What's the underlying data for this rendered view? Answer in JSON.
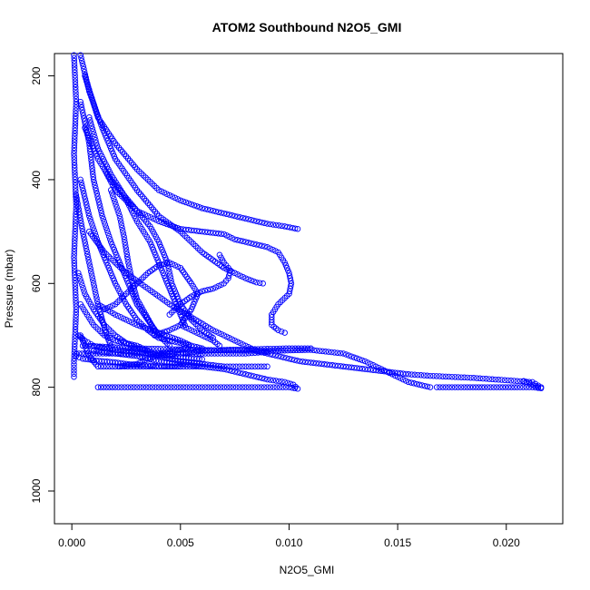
{
  "chart_data": {
    "type": "scatter",
    "title": "ATOM2 Southbound N2O5_GMI",
    "xlabel": "N2O5_GMI",
    "ylabel": "Pressure (mbar)",
    "xlim": [
      -0.0008,
      0.0226
    ],
    "ylim": [
      1063,
      157
    ],
    "y_reversed": true,
    "xticks": [
      0,
      0.005,
      0.01,
      0.015,
      0.02
    ],
    "xtick_labels": [
      "0.000",
      "0.005",
      "0.010",
      "0.015",
      "0.020"
    ],
    "yticks": [
      200,
      400,
      600,
      800,
      1000
    ],
    "ytick_labels": [
      "200",
      "400",
      "600",
      "800",
      "1000"
    ],
    "grid": false,
    "marker": "open-circle",
    "color": "#0000ff",
    "series": [
      {
        "values": [
          [
            0.0001,
            160
          ],
          [
            0.0002,
            250
          ],
          [
            0.0001,
            350
          ],
          [
            0.0002,
            450
          ],
          [
            0.0001,
            550
          ],
          [
            0.0002,
            650
          ],
          [
            0.0001,
            750
          ],
          [
            0.0001,
            780
          ]
        ]
      },
      {
        "values": [
          [
            0.0004,
            160
          ],
          [
            0.0008,
            230
          ],
          [
            0.0014,
            300
          ],
          [
            0.002,
            360
          ],
          [
            0.003,
            420
          ],
          [
            0.004,
            470
          ],
          [
            0.005,
            500
          ],
          [
            0.0055,
            520
          ],
          [
            0.006,
            540
          ],
          [
            0.0065,
            555
          ],
          [
            0.007,
            570
          ],
          [
            0.0075,
            580
          ],
          [
            0.008,
            590
          ],
          [
            0.0085,
            598
          ],
          [
            0.0088,
            600
          ]
        ]
      },
      {
        "values": [
          [
            0.0006,
            200
          ],
          [
            0.0012,
            280
          ],
          [
            0.002,
            330
          ],
          [
            0.003,
            380
          ],
          [
            0.004,
            420
          ],
          [
            0.005,
            440
          ],
          [
            0.006,
            455
          ],
          [
            0.007,
            465
          ],
          [
            0.008,
            475
          ],
          [
            0.009,
            485
          ],
          [
            0.0098,
            490
          ],
          [
            0.0104,
            495
          ]
        ]
      },
      {
        "values": [
          [
            0.0015,
            380
          ],
          [
            0.002,
            420
          ],
          [
            0.003,
            460
          ],
          [
            0.004,
            480
          ],
          [
            0.005,
            495
          ],
          [
            0.006,
            500
          ],
          [
            0.007,
            505
          ],
          [
            0.0075,
            515
          ],
          [
            0.008,
            520
          ],
          [
            0.0085,
            525
          ],
          [
            0.009,
            530
          ],
          [
            0.0095,
            540
          ],
          [
            0.0098,
            560
          ],
          [
            0.01,
            580
          ],
          [
            0.0101,
            600
          ],
          [
            0.01,
            620
          ],
          [
            0.0095,
            640
          ],
          [
            0.0092,
            660
          ],
          [
            0.0092,
            680
          ],
          [
            0.0095,
            690
          ],
          [
            0.0098,
            695
          ]
        ]
      },
      {
        "values": [
          [
            0.0008,
            500
          ],
          [
            0.0015,
            540
          ],
          [
            0.0025,
            580
          ],
          [
            0.0035,
            610
          ],
          [
            0.0045,
            640
          ],
          [
            0.0055,
            665
          ],
          [
            0.0065,
            690
          ],
          [
            0.0075,
            710
          ],
          [
            0.0085,
            730
          ],
          [
            0.0095,
            740
          ],
          [
            0.0105,
            750
          ],
          [
            0.0115,
            755
          ],
          [
            0.0125,
            760
          ],
          [
            0.0135,
            765
          ],
          [
            0.0145,
            770
          ],
          [
            0.0155,
            775
          ],
          [
            0.0165,
            778
          ],
          [
            0.0175,
            780
          ],
          [
            0.0185,
            782
          ],
          [
            0.0195,
            785
          ],
          [
            0.0205,
            788
          ],
          [
            0.0212,
            790
          ],
          [
            0.0216,
            800
          ]
        ]
      },
      {
        "values": [
          [
            0.0168,
            800
          ],
          [
            0.0175,
            800
          ],
          [
            0.0182,
            800
          ],
          [
            0.019,
            800
          ],
          [
            0.0197,
            800
          ],
          [
            0.0205,
            800
          ],
          [
            0.0212,
            800
          ],
          [
            0.0216,
            802
          ],
          [
            0.0212,
            795
          ],
          [
            0.0208,
            788
          ]
        ]
      },
      {
        "values": [
          [
            0.0005,
            720
          ],
          [
            0.003,
            725
          ],
          [
            0.006,
            728
          ],
          [
            0.009,
            730
          ],
          [
            0.011,
            728
          ],
          [
            0.0125,
            735
          ],
          [
            0.0135,
            750
          ],
          [
            0.0145,
            770
          ],
          [
            0.0155,
            790
          ],
          [
            0.0165,
            800
          ]
        ]
      },
      {
        "values": [
          [
            0.0012,
            800
          ],
          [
            0.002,
            800
          ],
          [
            0.003,
            800
          ],
          [
            0.004,
            800
          ],
          [
            0.005,
            800
          ],
          [
            0.006,
            800
          ],
          [
            0.007,
            800
          ],
          [
            0.008,
            800
          ],
          [
            0.009,
            800
          ],
          [
            0.01,
            800
          ],
          [
            0.0104,
            803
          ],
          [
            0.0102,
            795
          ],
          [
            0.0098,
            790
          ],
          [
            0.009,
            785
          ],
          [
            0.008,
            775
          ],
          [
            0.007,
            765
          ],
          [
            0.006,
            760
          ],
          [
            0.005,
            755
          ],
          [
            0.004,
            750
          ],
          [
            0.003,
            740
          ],
          [
            0.002,
            735
          ],
          [
            0.001,
            730
          ]
        ]
      },
      {
        "values": [
          [
            0.0002,
            735
          ],
          [
            0.001,
            735
          ],
          [
            0.002,
            735
          ],
          [
            0.003,
            735
          ],
          [
            0.004,
            735
          ],
          [
            0.005,
            735
          ],
          [
            0.006,
            730
          ],
          [
            0.007,
            728
          ],
          [
            0.008,
            727
          ],
          [
            0.009,
            726
          ],
          [
            0.01,
            725
          ],
          [
            0.011,
            725
          ]
        ]
      },
      {
        "values": [
          [
            0.0004,
            400
          ],
          [
            0.0008,
            470
          ],
          [
            0.0012,
            520
          ],
          [
            0.0016,
            560
          ],
          [
            0.002,
            600
          ],
          [
            0.0025,
            640
          ],
          [
            0.003,
            670
          ],
          [
            0.0035,
            690
          ],
          [
            0.004,
            705
          ],
          [
            0.005,
            715
          ],
          [
            0.006,
            725
          ]
        ]
      },
      {
        "values": [
          [
            0.0006,
            300
          ],
          [
            0.0012,
            360
          ],
          [
            0.0018,
            400
          ],
          [
            0.0024,
            430
          ],
          [
            0.003,
            460
          ],
          [
            0.0036,
            490
          ],
          [
            0.004,
            520
          ],
          [
            0.0044,
            560
          ],
          [
            0.0046,
            600
          ],
          [
            0.005,
            640
          ],
          [
            0.0055,
            670
          ],
          [
            0.006,
            690
          ],
          [
            0.0065,
            705
          ]
        ]
      },
      {
        "values": [
          [
            0.0012,
            640
          ],
          [
            0.002,
            660
          ],
          [
            0.003,
            680
          ],
          [
            0.004,
            695
          ],
          [
            0.005,
            710
          ],
          [
            0.0055,
            720
          ],
          [
            0.005,
            728
          ],
          [
            0.004,
            735
          ]
        ]
      },
      {
        "values": [
          [
            0.0015,
            650
          ],
          [
            0.002,
            640
          ],
          [
            0.0025,
            620
          ],
          [
            0.003,
            600
          ],
          [
            0.0035,
            580
          ],
          [
            0.004,
            565
          ],
          [
            0.0045,
            560
          ],
          [
            0.005,
            570
          ],
          [
            0.0055,
            600
          ],
          [
            0.0058,
            620
          ],
          [
            0.0055,
            650
          ],
          [
            0.005,
            680
          ]
        ]
      },
      {
        "values": [
          [
            0.0004,
            640
          ],
          [
            0.001,
            680
          ],
          [
            0.0015,
            700
          ],
          [
            0.002,
            710
          ],
          [
            0.003,
            720
          ],
          [
            0.004,
            740
          ],
          [
            0.005,
            750
          ],
          [
            0.006,
            755
          ],
          [
            0.007,
            760
          ],
          [
            0.008,
            760
          ],
          [
            0.009,
            760
          ]
        ]
      },
      {
        "values": [
          [
            0.0004,
            250
          ],
          [
            0.0008,
            330
          ],
          [
            0.001,
            400
          ],
          [
            0.0014,
            470
          ],
          [
            0.0018,
            520
          ],
          [
            0.0022,
            560
          ],
          [
            0.0026,
            600
          ],
          [
            0.003,
            640
          ],
          [
            0.0035,
            670
          ],
          [
            0.004,
            700
          ],
          [
            0.0045,
            720
          ]
        ]
      },
      {
        "values": [
          [
            0.0008,
            280
          ],
          [
            0.0012,
            340
          ],
          [
            0.0018,
            390
          ],
          [
            0.0024,
            430
          ],
          [
            0.003,
            480
          ],
          [
            0.0036,
            520
          ],
          [
            0.004,
            560
          ],
          [
            0.0044,
            600
          ],
          [
            0.0048,
            640
          ],
          [
            0.0052,
            680
          ]
        ]
      },
      {
        "values": [
          [
            0.0018,
            420
          ],
          [
            0.0022,
            470
          ],
          [
            0.0024,
            510
          ],
          [
            0.0026,
            560
          ],
          [
            0.0028,
            600
          ],
          [
            0.003,
            630
          ],
          [
            0.0034,
            660
          ],
          [
            0.0038,
            690
          ]
        ]
      },
      {
        "values": [
          [
            0.0004,
            700
          ],
          [
            0.0008,
            740
          ],
          [
            0.0012,
            760
          ],
          [
            0.002,
            760
          ],
          [
            0.003,
            760
          ],
          [
            0.004,
            760
          ],
          [
            0.005,
            760
          ],
          [
            0.006,
            760
          ]
        ]
      },
      {
        "values": [
          [
            0.0022,
            760
          ],
          [
            0.003,
            755
          ],
          [
            0.0035,
            745
          ],
          [
            0.004,
            738
          ],
          [
            0.005,
            735
          ],
          [
            0.006,
            735
          ],
          [
            0.007,
            735
          ],
          [
            0.008,
            735
          ],
          [
            0.009,
            732
          ]
        ]
      },
      {
        "values": [
          [
            0.0003,
            580
          ],
          [
            0.0006,
            620
          ],
          [
            0.001,
            650
          ],
          [
            0.0015,
            680
          ],
          [
            0.002,
            700
          ],
          [
            0.0025,
            715
          ],
          [
            0.003,
            725
          ],
          [
            0.0035,
            730
          ]
        ]
      },
      {
        "values": [
          [
            0.0002,
            430
          ],
          [
            0.0005,
            500
          ],
          [
            0.0008,
            560
          ],
          [
            0.001,
            600
          ],
          [
            0.0012,
            640
          ],
          [
            0.0014,
            670
          ],
          [
            0.0016,
            700
          ],
          [
            0.0018,
            720
          ]
        ]
      },
      {
        "values": [
          [
            0.0045,
            660
          ],
          [
            0.005,
            640
          ],
          [
            0.0055,
            625
          ],
          [
            0.006,
            615
          ],
          [
            0.0065,
            610
          ],
          [
            0.007,
            600
          ],
          [
            0.0072,
            590
          ],
          [
            0.0073,
            575
          ],
          [
            0.007,
            560
          ],
          [
            0.0068,
            545
          ]
        ]
      },
      {
        "values": [
          [
            0.0038,
            700
          ],
          [
            0.0045,
            690
          ],
          [
            0.005,
            680
          ],
          [
            0.0055,
            690
          ],
          [
            0.006,
            700
          ],
          [
            0.0065,
            710
          ],
          [
            0.0068,
            720
          ]
        ]
      },
      {
        "values": [
          [
            0.0003,
            700
          ],
          [
            0.0006,
            710
          ],
          [
            0.001,
            720
          ],
          [
            0.0015,
            725
          ],
          [
            0.002,
            728
          ],
          [
            0.0025,
            730
          ],
          [
            0.003,
            732
          ],
          [
            0.0035,
            735
          ],
          [
            0.004,
            738
          ],
          [
            0.0045,
            740
          ],
          [
            0.005,
            742
          ],
          [
            0.0055,
            744
          ],
          [
            0.006,
            746
          ]
        ]
      },
      {
        "values": [
          [
            0.0002,
            740
          ],
          [
            0.0005,
            745
          ],
          [
            0.001,
            748
          ],
          [
            0.0015,
            750
          ],
          [
            0.002,
            752
          ],
          [
            0.0025,
            755
          ],
          [
            0.003,
            757
          ],
          [
            0.0035,
            758
          ],
          [
            0.004,
            760
          ],
          [
            0.0045,
            760
          ],
          [
            0.005,
            760
          ]
        ]
      }
    ]
  }
}
